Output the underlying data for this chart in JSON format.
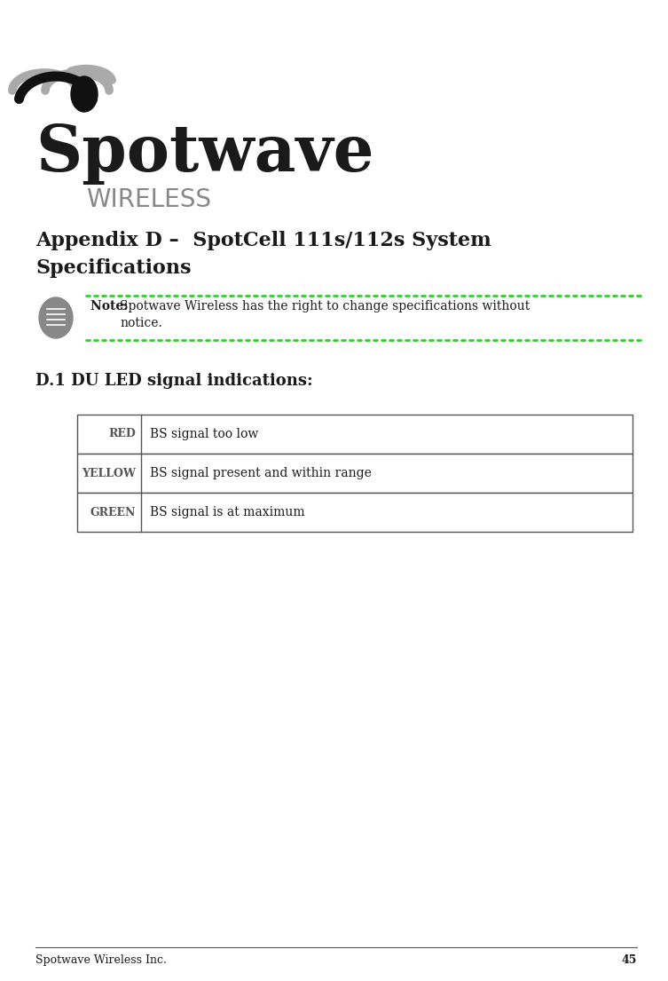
{
  "page_width": 7.53,
  "page_height": 11.05,
  "bg_color": "#ffffff",
  "logo_spotwave_text": "Spotwave",
  "logo_wireless_text": "WIRELESS",
  "logo_spotwave_color": "#1a1a1a",
  "logo_wireless_color": "#888888",
  "logo_spotwave_fontsize": 52,
  "logo_wireless_fontsize": 20,
  "appendix_title": "Appendix D –  SpotCell 111s/112s System\nSpecifications",
  "appendix_title_fontsize": 16,
  "appendix_title_color": "#1a1a1a",
  "note_text": "Note: Spotwave Wireless has the right to change specifications without\nnotice.",
  "note_fontsize": 10,
  "note_color": "#1a1a1a",
  "note_bold_prefix": "Note:",
  "dot_color": "#33cc33",
  "section_title": "D.1 DU LED signal indications:",
  "section_title_fontsize": 13,
  "section_title_color": "#1a1a1a",
  "table_labels": [
    "RED",
    "YELLOW",
    "GREEN"
  ],
  "table_descriptions": [
    "BS signal too low",
    "BS signal present and within range",
    "BS signal is at maximum"
  ],
  "table_label_fontsize": 9,
  "table_desc_fontsize": 10,
  "table_border_color": "#555555",
  "footer_text": "Spotwave Wireless Inc.",
  "footer_page": "45",
  "footer_fontsize": 9,
  "footer_color": "#1a1a1a"
}
